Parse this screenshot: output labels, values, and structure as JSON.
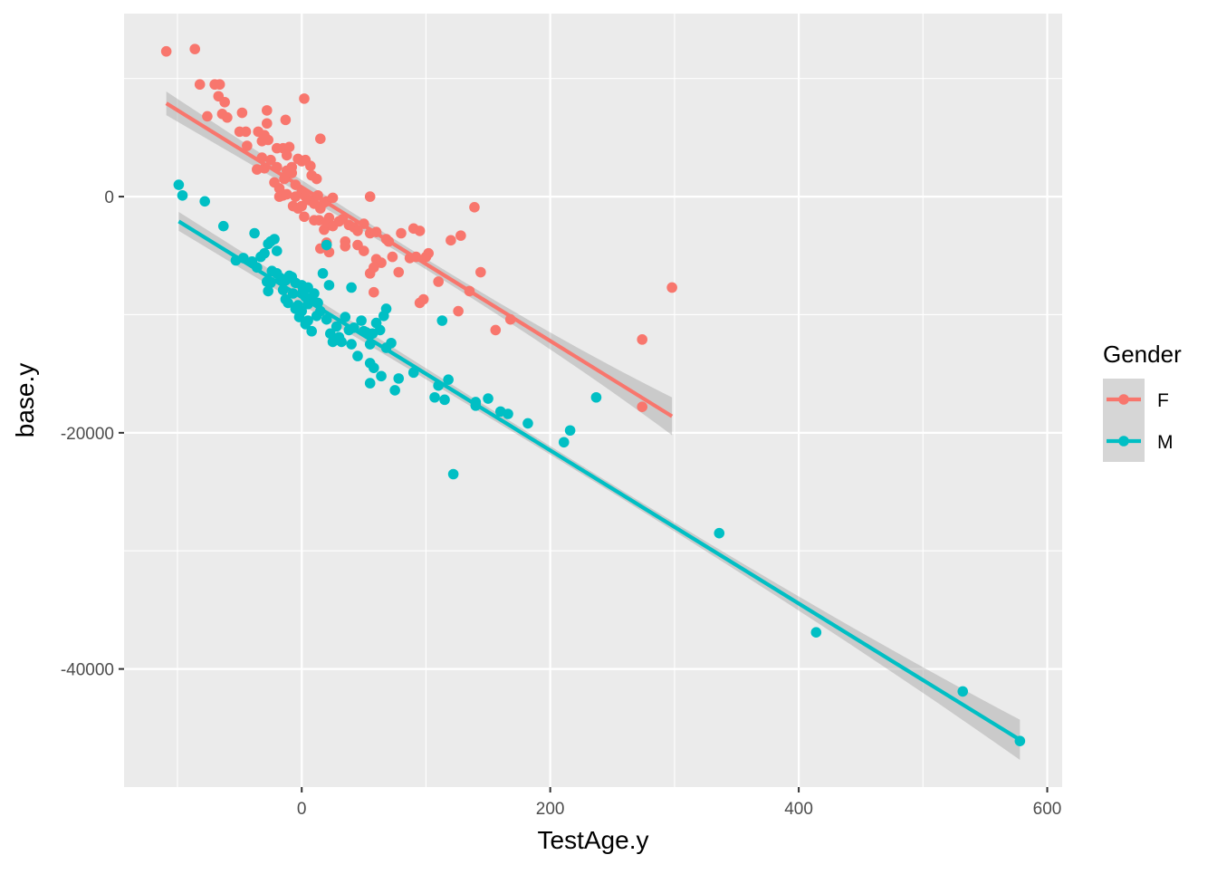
{
  "chart_data": {
    "type": "scatter",
    "title": "",
    "xlabel": "TestAge.y",
    "ylabel": "base.y",
    "xlim": [
      -143,
      612
    ],
    "ylim": [
      -50000,
      15500
    ],
    "x_ticks": [
      0,
      200,
      400,
      600
    ],
    "x_tick_labels": [
      "0",
      "200",
      "400",
      "600"
    ],
    "y_ticks": [
      0,
      -20000,
      -40000
    ],
    "y_tick_labels": [
      "0",
      "-20000",
      "-40000"
    ],
    "grid": true,
    "legend": {
      "title": "Gender",
      "position": "right"
    },
    "colors": {
      "F": "#F8766D",
      "M": "#00BFC4",
      "panel": "#EBEBEB",
      "band": "#999999"
    },
    "series": [
      {
        "name": "F",
        "color": "#F8766D",
        "fit": {
          "x": [
            -109,
            298
          ],
          "y": [
            7900,
            -18600
          ],
          "se_half_width_ends": [
            1000,
            1600
          ],
          "se_half_width_mid": 450
        },
        "points": [
          [
            -109,
            12300
          ],
          [
            -86,
            12500
          ],
          [
            -82,
            9500
          ],
          [
            -70,
            9500
          ],
          [
            -66,
            9500
          ],
          [
            -76,
            6800
          ],
          [
            -67,
            8500
          ],
          [
            -62,
            8000
          ],
          [
            -64,
            7000
          ],
          [
            -60,
            6700
          ],
          [
            -50,
            5500
          ],
          [
            -48,
            7100
          ],
          [
            -45,
            5500
          ],
          [
            -44,
            4300
          ],
          [
            -35,
            5500
          ],
          [
            -32,
            4700
          ],
          [
            -28,
            7300
          ],
          [
            -28,
            6200
          ],
          [
            -30,
            5200
          ],
          [
            -27,
            4800
          ],
          [
            -32,
            3300
          ],
          [
            -36,
            2300
          ],
          [
            -30,
            2400
          ],
          [
            -20,
            4100
          ],
          [
            -15,
            4100
          ],
          [
            -10,
            4200
          ],
          [
            -12,
            3500
          ],
          [
            -25,
            3100
          ],
          [
            -20,
            2500
          ],
          [
            -22,
            1200
          ],
          [
            -18,
            700
          ],
          [
            -14,
            1500
          ],
          [
            -12,
            2200
          ],
          [
            -18,
            0
          ],
          [
            -15,
            100
          ],
          [
            -12,
            200
          ],
          [
            -8,
            2500
          ],
          [
            -5,
            1000
          ],
          [
            0,
            3000
          ],
          [
            -3,
            3200
          ],
          [
            3,
            3100
          ],
          [
            7,
            2600
          ],
          [
            8,
            1800
          ],
          [
            12,
            1500
          ],
          [
            -13,
            6500
          ],
          [
            2,
            8300
          ],
          [
            15,
            4900
          ],
          [
            -8,
            2000
          ],
          [
            -5,
            0
          ],
          [
            0,
            400
          ],
          [
            3,
            0
          ],
          [
            6,
            -300
          ],
          [
            -7,
            -800
          ],
          [
            -3,
            -1000
          ],
          [
            0,
            -800
          ],
          [
            2,
            -1700
          ],
          [
            8,
            -300
          ],
          [
            10,
            -600
          ],
          [
            13,
            100
          ],
          [
            15,
            -1000
          ],
          [
            18,
            -500
          ],
          [
            20,
            -400
          ],
          [
            25,
            -100
          ],
          [
            22,
            -1800
          ],
          [
            10,
            -2000
          ],
          [
            14,
            -2000
          ],
          [
            18,
            -2800
          ],
          [
            20,
            -2200
          ],
          [
            25,
            -2500
          ],
          [
            30,
            -2100
          ],
          [
            33,
            -1900
          ],
          [
            38,
            -2400
          ],
          [
            42,
            -2600
          ],
          [
            45,
            -2900
          ],
          [
            50,
            -2300
          ],
          [
            55,
            -3100
          ],
          [
            60,
            -3000
          ],
          [
            68,
            -3600
          ],
          [
            70,
            -3800
          ],
          [
            80,
            -3100
          ],
          [
            90,
            -2700
          ],
          [
            95,
            -2900
          ],
          [
            120,
            -3700
          ],
          [
            128,
            -3300
          ],
          [
            139,
            -900
          ],
          [
            55,
            0
          ],
          [
            35,
            -3800
          ],
          [
            35,
            -4200
          ],
          [
            22,
            -4700
          ],
          [
            15,
            -4400
          ],
          [
            20,
            -3900
          ],
          [
            45,
            -4100
          ],
          [
            50,
            -4600
          ],
          [
            60,
            -5300
          ],
          [
            64,
            -5600
          ],
          [
            58,
            -6000
          ],
          [
            73,
            -5100
          ],
          [
            78,
            -6400
          ],
          [
            87,
            -5200
          ],
          [
            92,
            -5100
          ],
          [
            100,
            -5100
          ],
          [
            102,
            -4800
          ],
          [
            110,
            -7200
          ],
          [
            55,
            -6500
          ],
          [
            58,
            -8100
          ],
          [
            95,
            -9000
          ],
          [
            98,
            -8700
          ],
          [
            126,
            -9700
          ],
          [
            135,
            -8000
          ],
          [
            144,
            -6400
          ],
          [
            156,
            -11300
          ],
          [
            168,
            -10400
          ],
          [
            274,
            -12100
          ],
          [
            298,
            -7700
          ],
          [
            274,
            -17800
          ]
        ]
      },
      {
        "name": "M",
        "color": "#00BFC4",
        "fit": {
          "x": [
            -99,
            578
          ],
          "y": [
            -2100,
            -46000
          ],
          "se_half_width_ends": [
            800,
            1700
          ],
          "se_half_width_mid": 350
        },
        "points": [
          [
            -99,
            1000
          ],
          [
            -96,
            100
          ],
          [
            -78,
            -400
          ],
          [
            -63,
            -2500
          ],
          [
            -53,
            -5400
          ],
          [
            -47,
            -5200
          ],
          [
            -40,
            -5500
          ],
          [
            -38,
            -3100
          ],
          [
            -36,
            -6000
          ],
          [
            -33,
            -5100
          ],
          [
            -30,
            -4800
          ],
          [
            -27,
            -4000
          ],
          [
            -25,
            -3800
          ],
          [
            -22,
            -3600
          ],
          [
            -20,
            -4600
          ],
          [
            -28,
            -7200
          ],
          [
            -25,
            -7300
          ],
          [
            -27,
            -8000
          ],
          [
            -24,
            -6300
          ],
          [
            -20,
            -6500
          ],
          [
            -17,
            -6900
          ],
          [
            -13,
            -7100
          ],
          [
            -10,
            -6700
          ],
          [
            -8,
            -6800
          ],
          [
            -15,
            -7900
          ],
          [
            -13,
            -8700
          ],
          [
            -11,
            -9000
          ],
          [
            -7,
            -8200
          ],
          [
            -5,
            -9500
          ],
          [
            -3,
            -9200
          ],
          [
            0,
            -9700
          ],
          [
            -2,
            -10200
          ],
          [
            1,
            -8000
          ],
          [
            3,
            -8500
          ],
          [
            5,
            -9100
          ],
          [
            7,
            -8700
          ],
          [
            10,
            -8200
          ],
          [
            13,
            -9000
          ],
          [
            -5,
            -7300
          ],
          [
            0,
            -7500
          ],
          [
            5,
            -7700
          ],
          [
            15,
            -9700
          ],
          [
            17,
            -6500
          ],
          [
            20,
            -4100
          ],
          [
            20,
            -10400
          ],
          [
            22,
            -7500
          ],
          [
            23,
            -11600
          ],
          [
            25,
            -12300
          ],
          [
            28,
            -11000
          ],
          [
            30,
            -11900
          ],
          [
            32,
            -12300
          ],
          [
            35,
            -10200
          ],
          [
            38,
            -11300
          ],
          [
            40,
            -12500
          ],
          [
            42,
            -11100
          ],
          [
            12,
            -10100
          ],
          [
            8,
            -11400
          ],
          [
            5,
            -10500
          ],
          [
            3,
            -10800
          ],
          [
            40,
            -7700
          ],
          [
            45,
            -13500
          ],
          [
            48,
            -10500
          ],
          [
            50,
            -11400
          ],
          [
            52,
            -11500
          ],
          [
            55,
            -12500
          ],
          [
            57,
            -11600
          ],
          [
            60,
            -10700
          ],
          [
            63,
            -11300
          ],
          [
            66,
            -10100
          ],
          [
            68,
            -9500
          ],
          [
            68,
            -12800
          ],
          [
            72,
            -12400
          ],
          [
            55,
            -14100
          ],
          [
            58,
            -14500
          ],
          [
            64,
            -15200
          ],
          [
            55,
            -15800
          ],
          [
            75,
            -16400
          ],
          [
            78,
            -15400
          ],
          [
            90,
            -14900
          ],
          [
            107,
            -17000
          ],
          [
            110,
            -16000
          ],
          [
            115,
            -17200
          ],
          [
            118,
            -15500
          ],
          [
            113,
            -10500
          ],
          [
            122,
            -23500
          ],
          [
            140,
            -17700
          ],
          [
            140,
            -17400
          ],
          [
            150,
            -17100
          ],
          [
            160,
            -18200
          ],
          [
            166,
            -18400
          ],
          [
            182,
            -19200
          ],
          [
            211,
            -20800
          ],
          [
            216,
            -19800
          ],
          [
            237,
            -17000
          ],
          [
            336,
            -28500
          ],
          [
            414,
            -36900
          ],
          [
            532,
            -41900
          ],
          [
            578,
            -46100
          ]
        ]
      }
    ]
  }
}
